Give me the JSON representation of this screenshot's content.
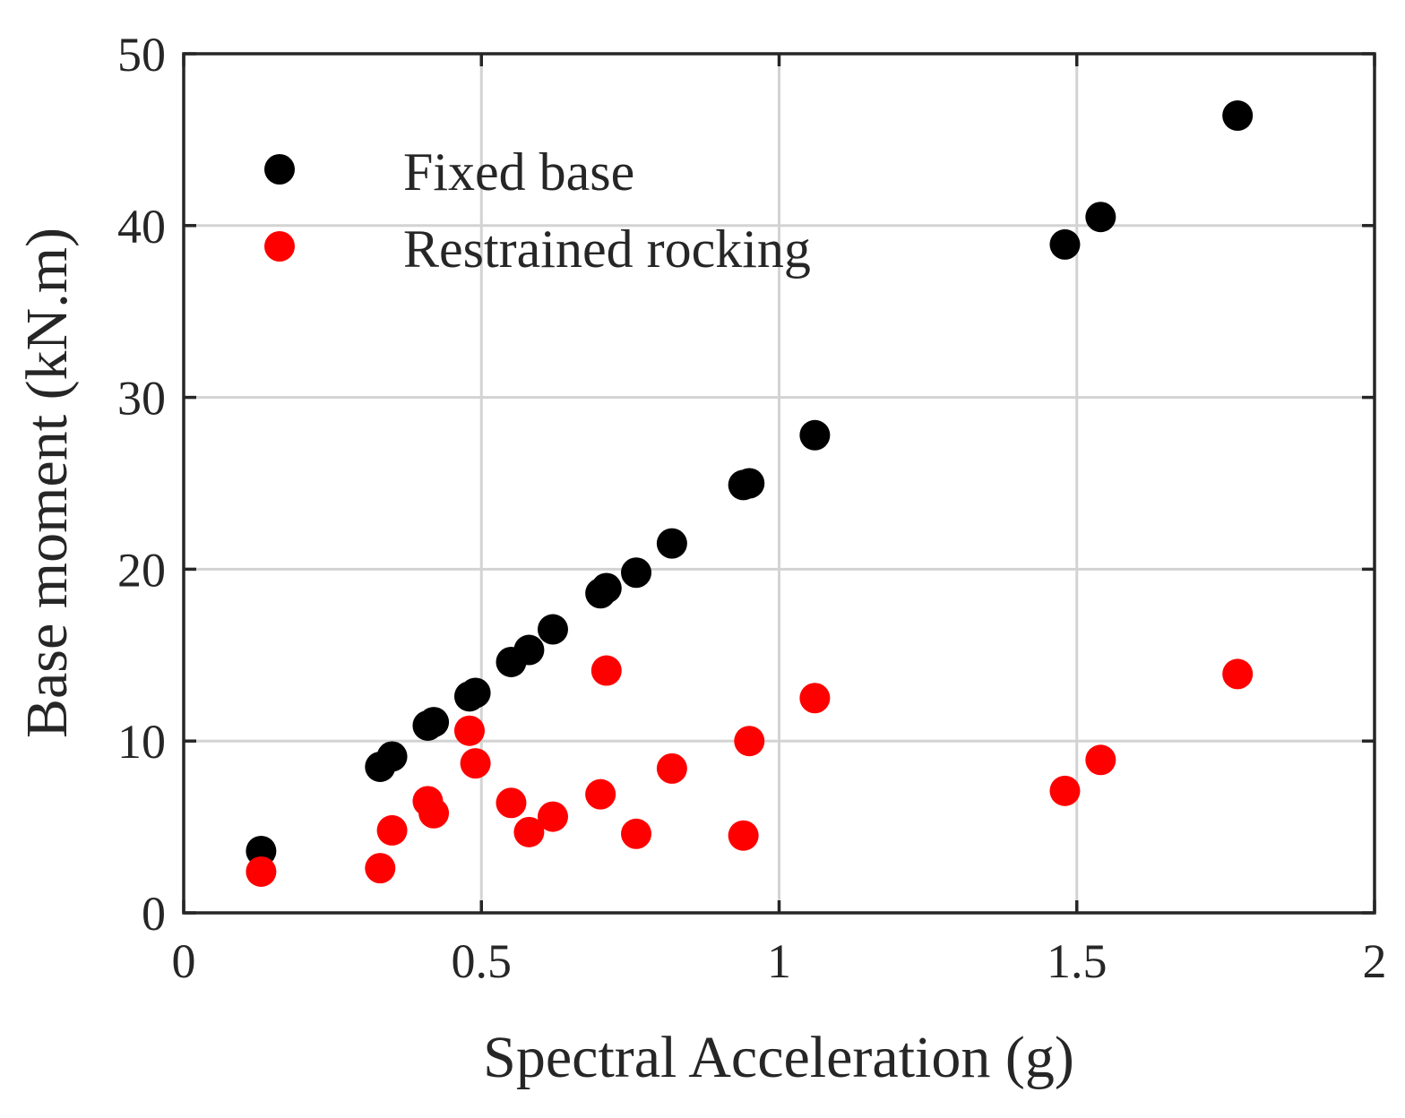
{
  "chart_data": {
    "type": "scatter",
    "title": "",
    "xlabel": "Spectral Acceleration (g)",
    "ylabel": "Base moment (kN.m)",
    "xlim": [
      0,
      2
    ],
    "ylim": [
      0,
      50
    ],
    "xticks": [
      0,
      0.5,
      1,
      1.5,
      2
    ],
    "xtick_labels": [
      "0",
      "0.5",
      "1",
      "1.5",
      "2"
    ],
    "yticks": [
      0,
      10,
      20,
      30,
      40,
      50
    ],
    "ytick_labels": [
      "0",
      "10",
      "20",
      "30",
      "40",
      "50"
    ],
    "grid": true,
    "legend_position": "top-left",
    "series": [
      {
        "name": "Fixed base",
        "color": "#000000",
        "points": [
          [
            0.13,
            3.6
          ],
          [
            0.33,
            8.5
          ],
          [
            0.35,
            9.1
          ],
          [
            0.41,
            10.9
          ],
          [
            0.42,
            11.1
          ],
          [
            0.48,
            12.6
          ],
          [
            0.49,
            12.8
          ],
          [
            0.55,
            14.6
          ],
          [
            0.58,
            15.3
          ],
          [
            0.62,
            16.5
          ],
          [
            0.7,
            18.6
          ],
          [
            0.71,
            18.9
          ],
          [
            0.76,
            19.8
          ],
          [
            0.82,
            21.5
          ],
          [
            0.94,
            24.9
          ],
          [
            0.95,
            25.0
          ],
          [
            1.06,
            27.8
          ],
          [
            1.48,
            38.9
          ],
          [
            1.54,
            40.5
          ],
          [
            1.77,
            46.4
          ]
        ]
      },
      {
        "name": "Restrained rocking",
        "color": "#ff0000",
        "points": [
          [
            0.13,
            2.4
          ],
          [
            0.33,
            2.6
          ],
          [
            0.35,
            4.8
          ],
          [
            0.41,
            6.5
          ],
          [
            0.42,
            5.8
          ],
          [
            0.48,
            10.6
          ],
          [
            0.49,
            8.7
          ],
          [
            0.55,
            6.4
          ],
          [
            0.58,
            4.7
          ],
          [
            0.62,
            5.6
          ],
          [
            0.7,
            6.9
          ],
          [
            0.71,
            14.1
          ],
          [
            0.76,
            4.6
          ],
          [
            0.82,
            8.4
          ],
          [
            0.94,
            4.5
          ],
          [
            0.95,
            10.0
          ],
          [
            1.06,
            12.5
          ],
          [
            1.48,
            7.1
          ],
          [
            1.54,
            8.9
          ],
          [
            1.77,
            13.9
          ]
        ]
      }
    ]
  }
}
